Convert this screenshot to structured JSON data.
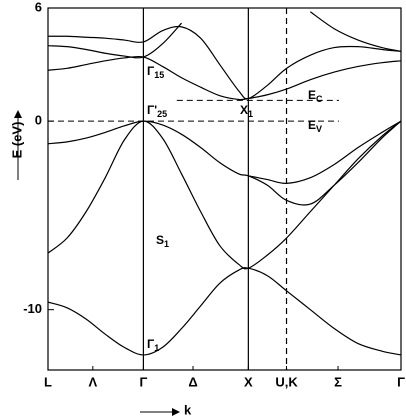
{
  "chart_data": {
    "type": "line",
    "y_label": "E (eV)",
    "x_label": "k",
    "color": "#000000",
    "x": [
      0,
      0.2,
      0.4,
      0.6,
      0.8,
      1.0,
      1.2,
      1.4,
      1.6,
      1.8,
      2.0,
      2.1,
      2.3,
      2.5,
      2.75,
      3.0,
      3.25,
      3.5,
      3.7
    ],
    "xlim": [
      0,
      3.7
    ],
    "xticks": [
      {
        "value": 0,
        "label": "L"
      },
      {
        "value": 0.47,
        "label": "Λ"
      },
      {
        "value": 1.0,
        "label": "Γ"
      },
      {
        "value": 1.52,
        "label": "Δ"
      },
      {
        "value": 2.1,
        "label": "X"
      },
      {
        "value": 2.5,
        "label": "U,K"
      },
      {
        "value": 3.04,
        "label": "Σ"
      },
      {
        "value": 3.7,
        "label": "Γ"
      }
    ],
    "ylim": [
      -13.2,
      6
    ],
    "yticks": [
      6,
      0,
      -10
    ],
    "series": [
      {
        "values": [
          -9.6,
          -9.9,
          -10.5,
          -11.3,
          -12.0,
          -12.4,
          -12.0,
          -11.0,
          -9.8,
          -8.6,
          -7.9,
          -7.8,
          -8.2,
          -9.0,
          -10.0,
          -11.0,
          -11.8,
          -12.2,
          -12.4
        ]
      },
      {
        "values": [
          -7.0,
          -6.2,
          -4.8,
          -3.0,
          -1.0,
          0,
          -0.9,
          -2.8,
          -4.8,
          -6.6,
          -7.6,
          -7.8,
          -7.1,
          -6.2,
          -4.8,
          -3.4,
          -2.0,
          -0.8,
          0
        ]
      },
      {
        "values": [
          -1.2,
          -1.1,
          -0.9,
          -0.6,
          -0.25,
          0,
          -0.2,
          -0.7,
          -1.4,
          -2.2,
          -2.8,
          -2.9,
          -3.4,
          -4.2,
          -4.4,
          -3.4,
          -2.2,
          -0.9,
          0
        ]
      },
      {
        "values": [
          null,
          null,
          null,
          null,
          null,
          null,
          null,
          null,
          null,
          null,
          null,
          -2.9,
          -3.1,
          -3.3,
          -3.0,
          -2.3,
          -1.4,
          -0.6,
          0
        ]
      },
      {
        "values": [
          2.7,
          2.8,
          3.0,
          3.2,
          3.35,
          3.4,
          2.9,
          2.3,
          1.8,
          1.35,
          1.15,
          1.2,
          1.4,
          1.7,
          2.2,
          2.6,
          2.9,
          3.1,
          3.2
        ]
      },
      {
        "values": [
          4.5,
          4.5,
          4.45,
          4.4,
          4.3,
          4.2,
          4.8,
          5.0,
          4.4,
          3.0,
          1.6,
          1.2,
          1.9,
          2.8,
          3.5,
          3.9,
          3.95,
          3.8,
          3.7
        ]
      },
      {
        "values": [
          4.0,
          3.95,
          3.8,
          3.6,
          3.45,
          3.4,
          4.1,
          5.2,
          null,
          null,
          null,
          null,
          null,
          null,
          5.8,
          4.9,
          4.3,
          3.9,
          3.7
        ]
      }
    ],
    "vlines": [
      {
        "x": 1.0,
        "style": "solid"
      },
      {
        "x": 2.1,
        "style": "solid"
      },
      {
        "x": 2.5,
        "style": "dashed"
      }
    ],
    "hlines": [
      {
        "y": 0,
        "from": 0,
        "to": 3.05
      },
      {
        "y": 1.1,
        "from": 1.35,
        "to": 3.05
      }
    ],
    "annotations": [
      {
        "text": "Γ",
        "sub": "15"
      },
      {
        "text": "Γ'",
        "sub": "25"
      },
      {
        "text": "X",
        "sub": "1"
      },
      {
        "text": "E",
        "sub": "C"
      },
      {
        "text": "E",
        "sub": "V"
      },
      {
        "text": "S",
        "sub": "1"
      },
      {
        "text": "Γ",
        "sub": "1"
      }
    ]
  }
}
